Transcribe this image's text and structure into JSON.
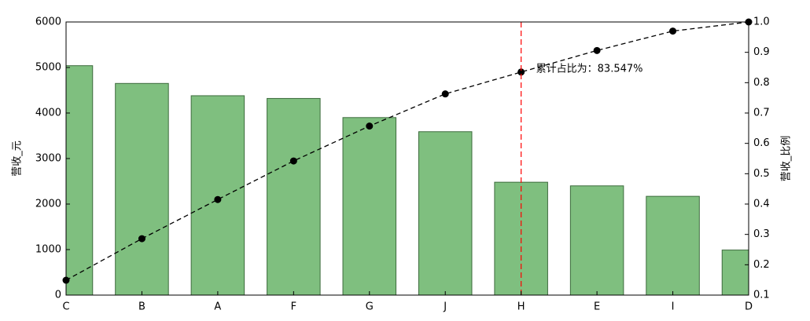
{
  "chart_data": {
    "type": "bar",
    "categories": [
      "C",
      "B",
      "A",
      "F",
      "G",
      "J",
      "H",
      "E",
      "I",
      "D"
    ],
    "series": [
      {
        "type": "bar",
        "color": "#7fbf7f",
        "values": [
          5040,
          4650,
          4380,
          4320,
          3900,
          3590,
          2480,
          2400,
          2170,
          990
        ]
      },
      {
        "type": "line",
        "axis": "y2",
        "color": "#000000",
        "values": [
          0.149,
          0.286,
          0.415,
          0.542,
          0.657,
          0.763,
          0.835,
          0.906,
          0.97,
          1.0
        ]
      }
    ],
    "ylabel": "营收_元",
    "y2label": "营收_比例",
    "ylim": [
      0,
      6000
    ],
    "yticks": [
      0,
      1000,
      2000,
      3000,
      4000,
      5000,
      6000
    ],
    "y2lim": [
      0.1,
      1.0
    ],
    "y2ticks": [
      0.1,
      0.2,
      0.3,
      0.4,
      0.5,
      0.6,
      0.7,
      0.8,
      0.9,
      {
        "value": 1.0,
        "label": "1.0"
      }
    ],
    "annotation": {
      "text": "累计占比为：83.547%",
      "category": "H",
      "color": "#ff0000"
    }
  }
}
